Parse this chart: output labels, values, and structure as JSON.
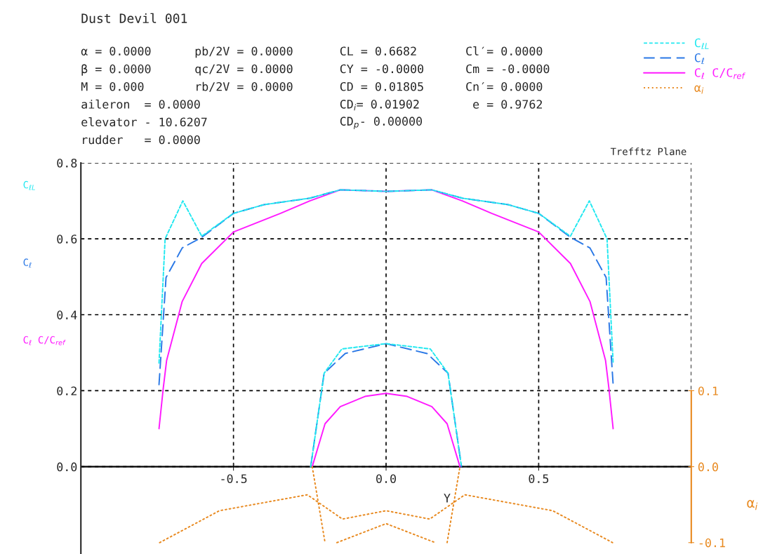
{
  "chart_data": {
    "type": "line",
    "title": "Dust Devil 001",
    "annotations": [
      "α = 0.0000",
      "β = 0.0000",
      "M = 0.000",
      "aileron  = 0.0000",
      "elevator - 10.6207",
      "rudder   = 0.0000",
      "pb/2V = 0.0000",
      "qc/2V = 0.0000",
      "rb/2V = 0.0000",
      "CL = 0.6682",
      "CY = -0.0000",
      "CD = 0.01805",
      "CD$_{i}$= 0.01902",
      "CD$_{p}$- 0.00000",
      "Cl′= 0.0000",
      "Cm = -0.0000",
      "Cn′= 0.0000",
      " e = 0.9762",
      "Trefftz Plane"
    ],
    "xlabel": "Y",
    "y2label": "α$_{i}$",
    "xlim": [
      -1.0,
      1.0
    ],
    "xticks": [
      -0.5,
      {
        "value": 0,
        "label": "0.0"
      },
      0.5
    ],
    "ylim": [
      -0.23,
      0.8
    ],
    "yticks": [
      {
        "value": 0,
        "label": "0.0"
      },
      0.2,
      0.4,
      0.6,
      0.8
    ],
    "y2lim": [
      -0.115,
      0.4
    ],
    "y2ticks": [
      -0.1,
      {
        "value": 0,
        "label": "0.0"
      },
      0.1
    ],
    "grid": true,
    "legend": "top right",
    "series": [
      {
        "name": "C$_{ℓL}$",
        "color": "#22e8f0",
        "line_style": "dashed",
        "x": [
          -0.744,
          -0.724,
          -0.666,
          -0.604,
          -0.5,
          -0.4,
          -0.25,
          -0.15,
          0,
          0.15,
          0.25,
          0.4,
          0.5,
          0.604,
          0.666,
          0.724,
          0.744,
          null,
          -0.247,
          -0.203,
          -0.145,
          0,
          0.145,
          0.203,
          0.247
        ],
        "values": [
          0.273,
          0.6,
          0.7,
          0.607,
          0.667,
          0.69,
          0.707,
          0.729,
          0.725,
          0.729,
          0.707,
          0.69,
          0.667,
          0.607,
          0.7,
          0.6,
          0.273,
          null,
          0,
          0.246,
          0.31,
          0.324,
          0.31,
          0.246,
          0
        ]
      },
      {
        "name": "C$_{ℓ}$",
        "color": "#2a78e6",
        "line_style": "dashed",
        "x": [
          -0.744,
          -0.721,
          -0.668,
          -0.604,
          -0.5,
          -0.4,
          -0.25,
          -0.15,
          0,
          0.15,
          0.25,
          0.4,
          0.5,
          0.604,
          0.668,
          0.721,
          0.744,
          null,
          -0.247,
          -0.203,
          -0.134,
          0,
          0.134,
          0.203,
          0.247
        ],
        "values": [
          0.216,
          0.498,
          0.576,
          0.604,
          0.667,
          0.69,
          0.707,
          0.729,
          0.725,
          0.729,
          0.707,
          0.69,
          0.667,
          0.604,
          0.576,
          0.498,
          0.216,
          null,
          0,
          0.246,
          0.298,
          0.324,
          0.298,
          0.246,
          0
        ]
      },
      {
        "name": "C$_{ℓ}$ C/C$_{ref}$",
        "color": "#ff1aff",
        "line_style": "solid",
        "x": [
          -0.744,
          -0.73,
          -0.719,
          -0.668,
          -0.604,
          -0.5,
          -0.346,
          -0.25,
          -0.15,
          0,
          0.15,
          0.25,
          0.346,
          0.5,
          0.604,
          0.668,
          0.719,
          0.73,
          0.744,
          null,
          -0.242,
          -0.2,
          -0.15,
          -0.069,
          0,
          0.069,
          0.15,
          0.2,
          0.242
        ],
        "values": [
          0.1,
          0.207,
          0.28,
          0.435,
          0.535,
          0.618,
          0.667,
          0.7,
          0.729,
          0.725,
          0.729,
          0.7,
          0.667,
          0.618,
          0.535,
          0.435,
          0.28,
          0.207,
          0.1,
          null,
          0,
          0.113,
          0.158,
          0.185,
          0.193,
          0.185,
          0.158,
          0.113,
          0
        ]
      },
      {
        "name": "α$_{i}$",
        "color": "#e8891f",
        "line_style": "dotted",
        "axis": "y2",
        "x": [
          -0.742,
          -0.546,
          -0.258,
          -0.143,
          0,
          0.143,
          0.258,
          0.546,
          0.742,
          null,
          -0.242,
          -0.2,
          null,
          -0.161,
          0,
          0.161,
          null,
          0.2,
          0.242
        ],
        "values": [
          -0.1,
          -0.058,
          -0.037,
          -0.069,
          -0.058,
          -0.069,
          -0.037,
          -0.058,
          -0.1,
          null,
          0,
          -0.1,
          null,
          -0.1,
          -0.075,
          -0.1,
          null,
          -0.1,
          0
        ]
      }
    ]
  }
}
